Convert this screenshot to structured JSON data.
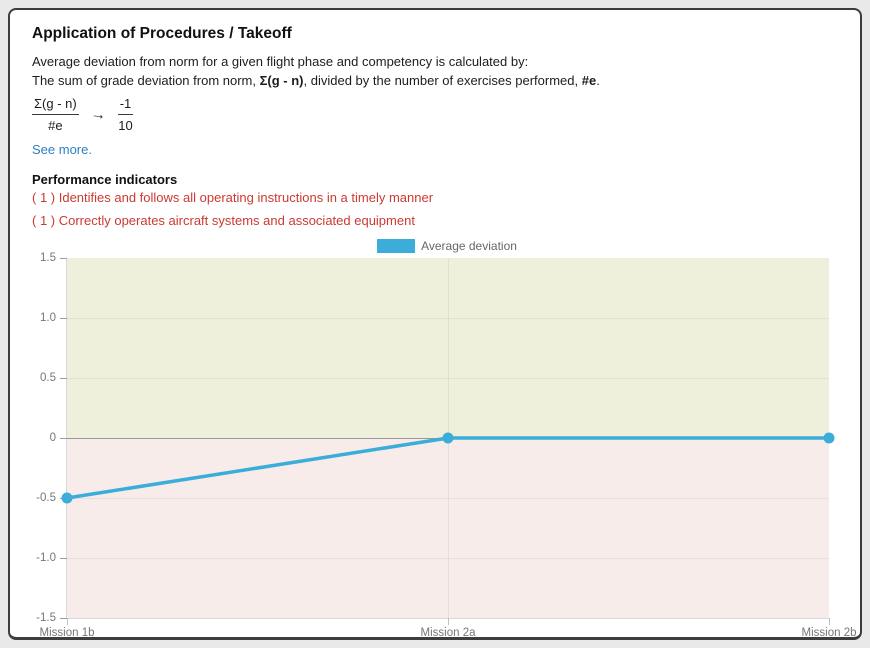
{
  "header": {
    "title": "Application of Procedures / Takeoff"
  },
  "description": {
    "line1": "Average deviation from norm for a given flight phase and competency is calculated by:",
    "line2_prefix": "The sum of grade deviation from norm, ",
    "line2_bold1": "Σ(g - n)",
    "line2_mid": ", divided by the number of exercises performed, ",
    "line2_bold2": "#e",
    "line2_suffix": "."
  },
  "formula": {
    "numerator": "Σ(g - n)",
    "denominator": "#e",
    "arrow": "→",
    "result_numerator": "-1",
    "result_denominator": "10"
  },
  "see_more_label": "See more.",
  "indicators": {
    "heading": "Performance indicators",
    "items": [
      "( 1 ) Identifies and follows all operating instructions in a timely manner",
      "( 1 ) Correctly operates aircraft systems and associated equipment"
    ]
  },
  "chart_data": {
    "type": "line",
    "categories": [
      "Mission 1b",
      "Mission 2a",
      "Mission 2b"
    ],
    "series": [
      {
        "name": "Average deviation",
        "values": [
          -0.5,
          0,
          0
        ]
      }
    ],
    "ylim": [
      -1.5,
      1.5
    ],
    "yticks": [
      {
        "value": 1.5,
        "label": "1.5"
      },
      {
        "value": 1.0,
        "label": "1.0"
      },
      {
        "value": 0.5,
        "label": "0.5"
      },
      {
        "value": 0,
        "label": "0"
      },
      {
        "value": -0.5,
        "label": "-0.5"
      },
      {
        "value": -1.0,
        "label": "-1.0"
      },
      {
        "value": -1.5,
        "label": "-1.5"
      }
    ],
    "legend_position": "top-center",
    "grid": true,
    "line_color": "#3badd8",
    "positive_region_color": "#eef0dc",
    "negative_region_color": "#f8eceb"
  }
}
